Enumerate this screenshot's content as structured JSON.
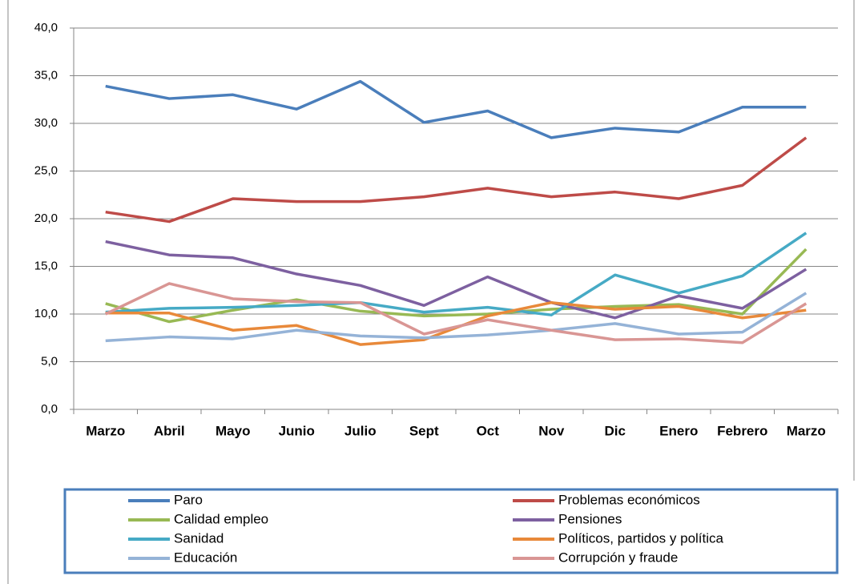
{
  "chart_data": {
    "type": "line",
    "categories": [
      "Marzo",
      "Abril",
      "Mayo",
      "Junio",
      "Julio",
      "Sept",
      "Oct",
      "Nov",
      "Dic",
      "Enero",
      "Febrero",
      "Marzo"
    ],
    "series": [
      {
        "name": "Paro",
        "color": "#4a7ebb",
        "values": [
          33.9,
          32.6,
          33.0,
          31.5,
          34.4,
          30.1,
          31.3,
          28.5,
          29.5,
          29.1,
          31.7,
          31.7
        ]
      },
      {
        "name": "Problemas económicos",
        "color": "#be4b48",
        "values": [
          20.7,
          19.7,
          22.1,
          21.8,
          21.8,
          22.3,
          23.2,
          22.3,
          22.8,
          22.1,
          23.5,
          28.5
        ]
      },
      {
        "name": "Calidad empleo",
        "color": "#98b954",
        "values": [
          11.1,
          9.2,
          10.4,
          11.5,
          10.3,
          9.8,
          10.0,
          10.5,
          10.8,
          11.0,
          10.0,
          16.8
        ]
      },
      {
        "name": "Pensiones",
        "color": "#7d60a0",
        "values": [
          17.6,
          16.2,
          15.9,
          14.2,
          13.0,
          10.9,
          13.9,
          11.2,
          9.6,
          11.9,
          10.6,
          14.7
        ]
      },
      {
        "name": "Sanidad",
        "color": "#46aac5",
        "values": [
          10.2,
          10.6,
          10.7,
          10.9,
          11.2,
          10.2,
          10.7,
          9.9,
          14.1,
          12.2,
          14.0,
          18.5
        ]
      },
      {
        "name": "Políticos, partidos y política",
        "color": "#e8893a",
        "values": [
          10.1,
          10.1,
          8.3,
          8.8,
          6.8,
          7.3,
          9.8,
          11.2,
          10.5,
          10.8,
          9.6,
          10.4
        ]
      },
      {
        "name": "Educación",
        "color": "#95b3d7",
        "values": [
          7.2,
          7.6,
          7.4,
          8.3,
          7.7,
          7.5,
          7.8,
          8.3,
          9.0,
          7.9,
          8.1,
          12.2
        ]
      },
      {
        "name": "Corrupción y fraude",
        "color": "#d99694",
        "values": [
          10.0,
          13.2,
          11.6,
          11.3,
          11.2,
          7.9,
          9.4,
          8.3,
          7.3,
          7.4,
          7.0,
          11.1
        ]
      }
    ],
    "ylim": [
      0,
      40
    ],
    "yticks": [
      {
        "value": 0,
        "label": "0,0"
      },
      {
        "value": 5,
        "label": "5,0"
      },
      {
        "value": 10,
        "label": "10,0"
      },
      {
        "value": 15,
        "label": "15,0"
      },
      {
        "value": 20,
        "label": "20,0"
      },
      {
        "value": 25,
        "label": "25,0"
      },
      {
        "value": 30,
        "label": "30,0"
      },
      {
        "value": 35,
        "label": "35,0"
      },
      {
        "value": 40,
        "label": "40,0"
      }
    ],
    "grid": true
  }
}
